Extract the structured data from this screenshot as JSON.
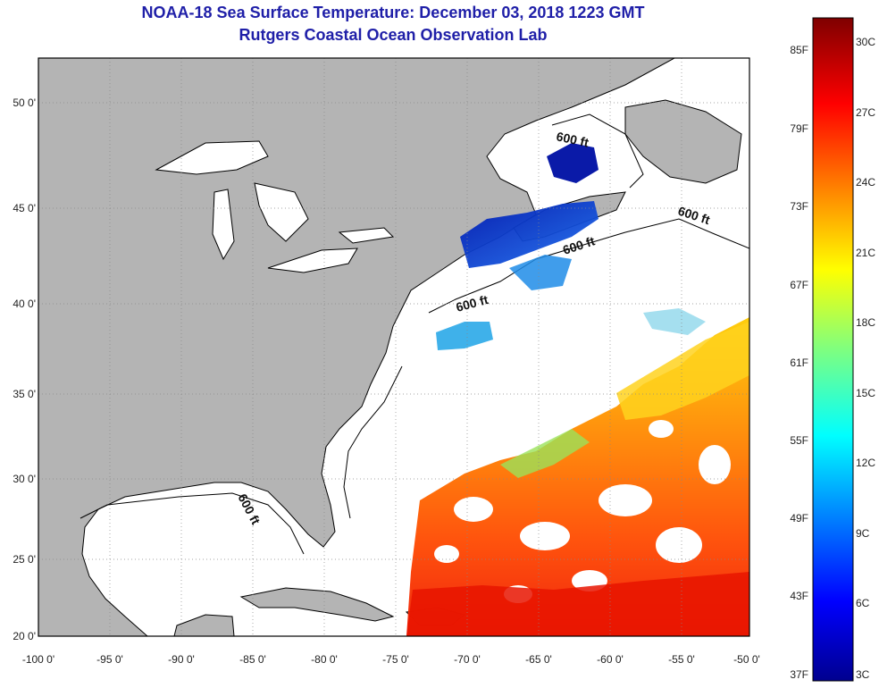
{
  "header": {
    "title_line1": "NOAA-18 Sea Surface Temperature:  December 03, 2018 1223 GMT",
    "title_line2": "Rutgers Coastal Ocean Observation Lab"
  },
  "map": {
    "lat_ticks": [
      "50 0'",
      "45 0'",
      "40 0'",
      "35 0'",
      "30 0'",
      "25 0'",
      "20 0'"
    ],
    "lon_ticks": [
      "-100 0'",
      "-95 0'",
      "-90 0'",
      "-85 0'",
      "-80 0'",
      "-75 0'",
      "-70 0'",
      "-65 0'",
      "-60 0'",
      "-55 0'",
      "-50 0'"
    ],
    "contour_labels": [
      "600 ft",
      "600 ft",
      "600 ft",
      "600 ft",
      "600 ft"
    ],
    "colors": {
      "land": "#b4b4b4",
      "water": "#ffffff",
      "grid": "#888888"
    }
  },
  "colorbar": {
    "fahrenheit": [
      "85F",
      "79F",
      "73F",
      "67F",
      "61F",
      "55F",
      "49F",
      "43F",
      "37F"
    ],
    "celsius": [
      "30C",
      "27C",
      "24C",
      "21C",
      "18C",
      "15C",
      "12C",
      "9C",
      "6C",
      "3C"
    ],
    "colormap": "jet"
  }
}
